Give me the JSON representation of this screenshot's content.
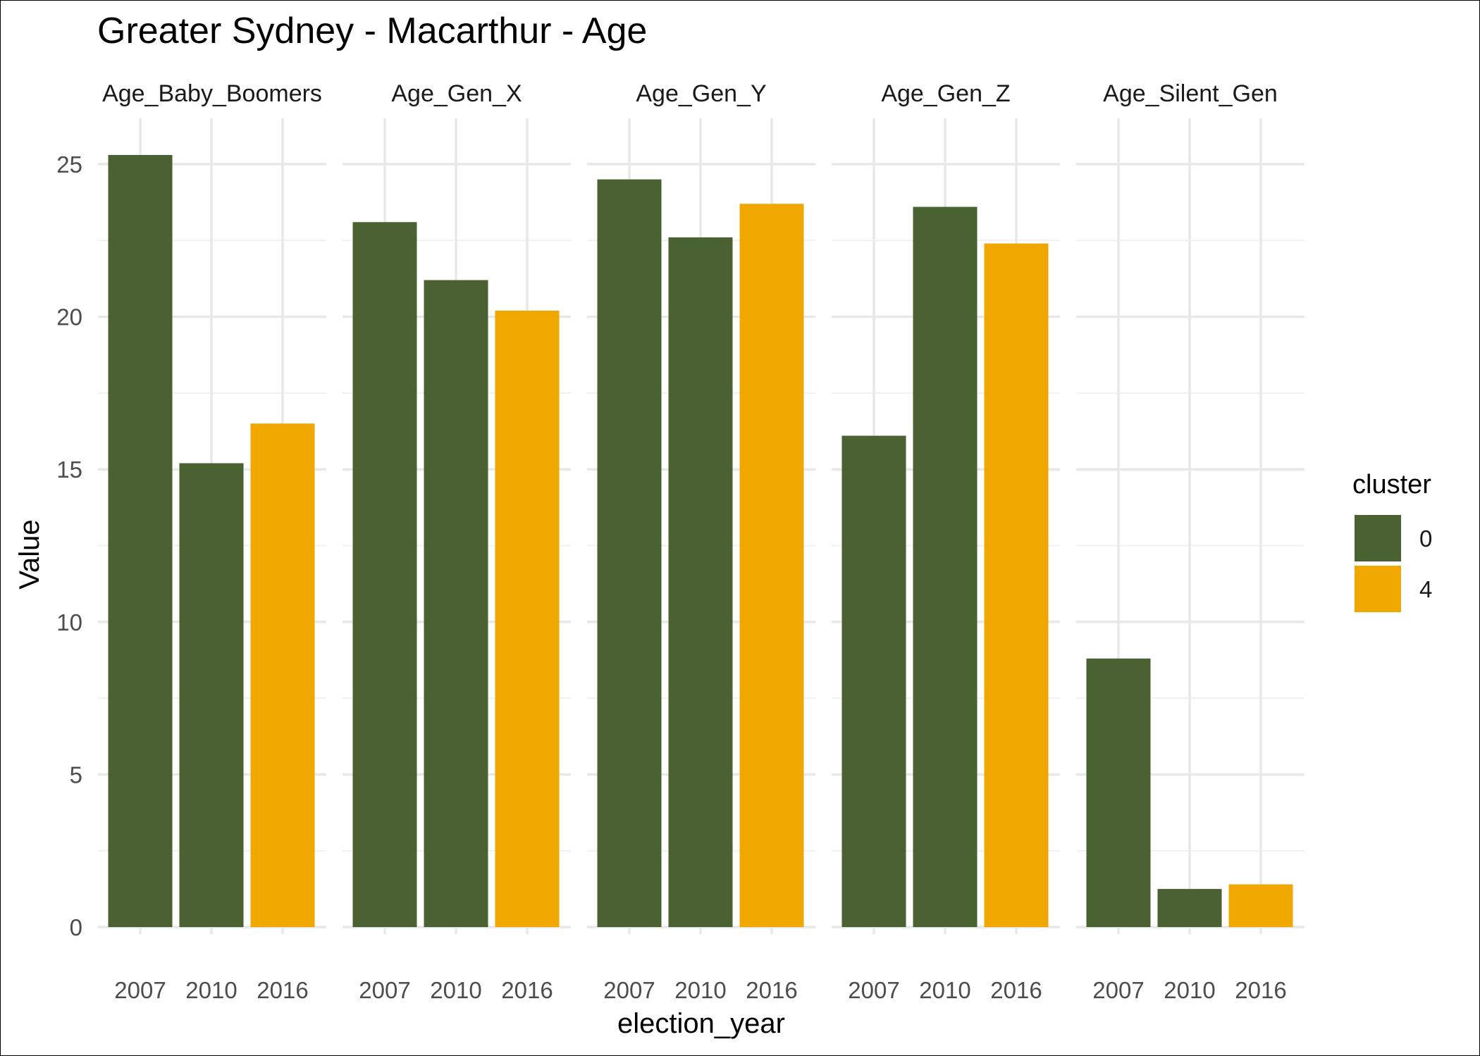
{
  "chart_data": {
    "type": "bar",
    "title": "Greater Sydney - Macarthur - Age",
    "xlabel": "election_year",
    "ylabel": "Value",
    "ylim": [
      0,
      26.5
    ],
    "yticks": [
      0,
      5,
      10,
      15,
      20,
      25
    ],
    "grid": true,
    "legend": {
      "title": "cluster",
      "placement": "right",
      "entries": [
        {
          "label": "0",
          "color": "#4a6132"
        },
        {
          "label": "4",
          "color": "#f0a800"
        }
      ]
    },
    "categories": [
      "2007",
      "2010",
      "2016"
    ],
    "facets": [
      {
        "name": "Age_Baby_Boomers",
        "values": [
          25.3,
          15.2,
          16.5
        ],
        "clusters": [
          "0",
          "0",
          "4"
        ]
      },
      {
        "name": "Age_Gen_X",
        "values": [
          23.1,
          21.2,
          20.2
        ],
        "clusters": [
          "0",
          "0",
          "4"
        ]
      },
      {
        "name": "Age_Gen_Y",
        "values": [
          24.5,
          22.6,
          23.7
        ],
        "clusters": [
          "0",
          "0",
          "4"
        ]
      },
      {
        "name": "Age_Gen_Z",
        "values": [
          16.1,
          23.6,
          22.4
        ],
        "clusters": [
          "0",
          "0",
          "4"
        ]
      },
      {
        "name": "Age_Silent_Gen",
        "values": [
          8.8,
          1.25,
          1.4
        ],
        "clusters": [
          "0",
          "0",
          "4"
        ]
      }
    ]
  }
}
